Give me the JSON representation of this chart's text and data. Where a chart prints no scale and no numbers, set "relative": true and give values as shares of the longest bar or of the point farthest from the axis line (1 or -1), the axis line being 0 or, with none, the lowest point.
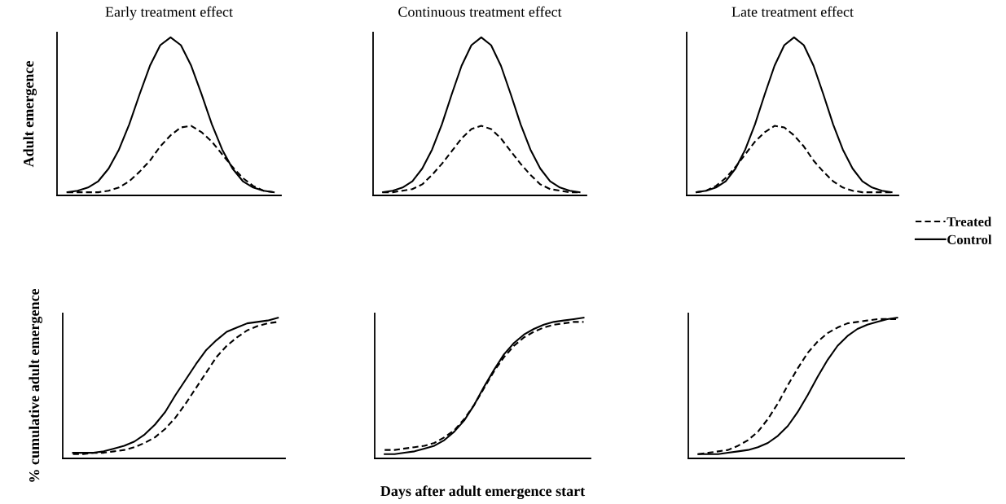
{
  "chart_data": [
    {
      "type": "line",
      "relative": true,
      "title": "Early treatment effect",
      "ylabel": "Adult emergence",
      "tick_labels": false,
      "grid": false,
      "marker": "none",
      "categories": [
        null,
        null,
        null,
        null,
        null,
        null,
        null,
        null,
        null,
        null,
        null,
        null,
        null,
        null,
        null,
        null,
        null,
        null,
        null,
        null,
        null
      ],
      "series": [
        {
          "color": "#000000",
          "line_style": "dashed",
          "values": [
            0.02,
            0.02,
            0.02,
            0.02,
            0.03,
            0.05,
            0.09,
            0.15,
            0.22,
            0.31,
            0.38,
            0.43,
            0.44,
            0.4,
            0.34,
            0.26,
            0.18,
            0.11,
            0.06,
            0.03,
            0.02
          ]
        },
        {
          "color": "#000000",
          "line_style": "solid",
          "values": [
            0.02,
            0.03,
            0.05,
            0.09,
            0.17,
            0.29,
            0.45,
            0.64,
            0.82,
            0.95,
            1.0,
            0.95,
            0.82,
            0.64,
            0.45,
            0.29,
            0.17,
            0.09,
            0.05,
            0.03,
            0.02
          ]
        }
      ]
    },
    {
      "type": "line",
      "relative": true,
      "title": "Continuous treatment effect",
      "tick_labels": false,
      "grid": false,
      "marker": "none",
      "categories": [
        null,
        null,
        null,
        null,
        null,
        null,
        null,
        null,
        null,
        null,
        null,
        null,
        null,
        null,
        null,
        null,
        null,
        null,
        null,
        null,
        null
      ],
      "series": [
        {
          "color": "#000000",
          "line_style": "dashed",
          "values": [
            0.02,
            0.02,
            0.03,
            0.04,
            0.07,
            0.13,
            0.2,
            0.28,
            0.36,
            0.42,
            0.44,
            0.42,
            0.36,
            0.28,
            0.2,
            0.13,
            0.07,
            0.04,
            0.03,
            0.02,
            0.02
          ]
        },
        {
          "color": "#000000",
          "line_style": "solid",
          "values": [
            0.02,
            0.03,
            0.05,
            0.09,
            0.17,
            0.29,
            0.45,
            0.64,
            0.82,
            0.95,
            1.0,
            0.95,
            0.82,
            0.64,
            0.45,
            0.29,
            0.17,
            0.09,
            0.05,
            0.03,
            0.02
          ]
        }
      ]
    },
    {
      "type": "line",
      "relative": true,
      "title": "Late treatment effect",
      "tick_labels": false,
      "grid": false,
      "marker": "none",
      "legend": "right",
      "categories": [
        null,
        null,
        null,
        null,
        null,
        null,
        null,
        null,
        null,
        null,
        null,
        null,
        null,
        null,
        null,
        null,
        null,
        null,
        null,
        null,
        null
      ],
      "series": [
        {
          "name": "Treated",
          "color": "#000000",
          "line_style": "dashed",
          "values": [
            0.02,
            0.03,
            0.06,
            0.11,
            0.18,
            0.26,
            0.34,
            0.4,
            0.44,
            0.43,
            0.38,
            0.31,
            0.22,
            0.15,
            0.09,
            0.05,
            0.03,
            0.02,
            0.02,
            0.02,
            0.02
          ]
        },
        {
          "name": "Control",
          "color": "#000000",
          "line_style": "solid",
          "values": [
            0.02,
            0.03,
            0.05,
            0.09,
            0.17,
            0.29,
            0.45,
            0.64,
            0.82,
            0.95,
            1.0,
            0.95,
            0.82,
            0.64,
            0.45,
            0.29,
            0.17,
            0.09,
            0.05,
            0.03,
            0.02
          ]
        }
      ]
    },
    {
      "type": "line",
      "relative": true,
      "ylabel": "% cumulative adult emergence",
      "tick_labels": false,
      "grid": false,
      "marker": "none",
      "categories": [
        null,
        null,
        null,
        null,
        null,
        null,
        null,
        null,
        null,
        null,
        null,
        null,
        null,
        null,
        null,
        null,
        null,
        null,
        null,
        null,
        null
      ],
      "series": [
        {
          "color": "#000000",
          "line_style": "dashed",
          "values": [
            0.03,
            0.03,
            0.04,
            0.04,
            0.05,
            0.06,
            0.08,
            0.11,
            0.15,
            0.21,
            0.29,
            0.39,
            0.5,
            0.61,
            0.72,
            0.8,
            0.86,
            0.91,
            0.94,
            0.96,
            0.97
          ]
        },
        {
          "color": "#000000",
          "line_style": "solid",
          "values": [
            0.04,
            0.04,
            0.04,
            0.05,
            0.07,
            0.09,
            0.12,
            0.17,
            0.24,
            0.33,
            0.45,
            0.56,
            0.67,
            0.77,
            0.84,
            0.9,
            0.93,
            0.96,
            0.97,
            0.98,
            1.0
          ]
        }
      ]
    },
    {
      "type": "line",
      "relative": true,
      "xlabel": "Days after adult emergence start",
      "tick_labels": false,
      "grid": false,
      "marker": "none",
      "categories": [
        null,
        null,
        null,
        null,
        null,
        null,
        null,
        null,
        null,
        null,
        null,
        null,
        null,
        null,
        null,
        null,
        null,
        null,
        null,
        null,
        null
      ],
      "series": [
        {
          "color": "#000000",
          "line_style": "dashed",
          "values": [
            0.06,
            0.06,
            0.07,
            0.08,
            0.09,
            0.11,
            0.15,
            0.2,
            0.28,
            0.38,
            0.5,
            0.62,
            0.72,
            0.8,
            0.86,
            0.9,
            0.93,
            0.95,
            0.96,
            0.97,
            0.97
          ]
        },
        {
          "color": "#000000",
          "line_style": "solid",
          "values": [
            0.03,
            0.03,
            0.04,
            0.05,
            0.07,
            0.09,
            0.13,
            0.19,
            0.27,
            0.38,
            0.51,
            0.63,
            0.74,
            0.82,
            0.88,
            0.92,
            0.95,
            0.97,
            0.98,
            0.99,
            1.0
          ]
        }
      ]
    },
    {
      "type": "line",
      "relative": true,
      "tick_labels": false,
      "grid": false,
      "marker": "none",
      "categories": [
        null,
        null,
        null,
        null,
        null,
        null,
        null,
        null,
        null,
        null,
        null,
        null,
        null,
        null,
        null,
        null,
        null,
        null,
        null,
        null,
        null
      ],
      "series": [
        {
          "color": "#000000",
          "line_style": "dashed",
          "values": [
            0.03,
            0.04,
            0.05,
            0.06,
            0.09,
            0.13,
            0.19,
            0.28,
            0.39,
            0.52,
            0.64,
            0.75,
            0.83,
            0.89,
            0.93,
            0.96,
            0.97,
            0.98,
            0.99,
            0.99,
            0.99
          ]
        },
        {
          "color": "#000000",
          "line_style": "solid",
          "values": [
            0.03,
            0.03,
            0.03,
            0.04,
            0.05,
            0.06,
            0.08,
            0.11,
            0.16,
            0.23,
            0.33,
            0.45,
            0.58,
            0.7,
            0.8,
            0.87,
            0.92,
            0.95,
            0.97,
            0.99,
            1.0
          ]
        }
      ]
    }
  ]
}
